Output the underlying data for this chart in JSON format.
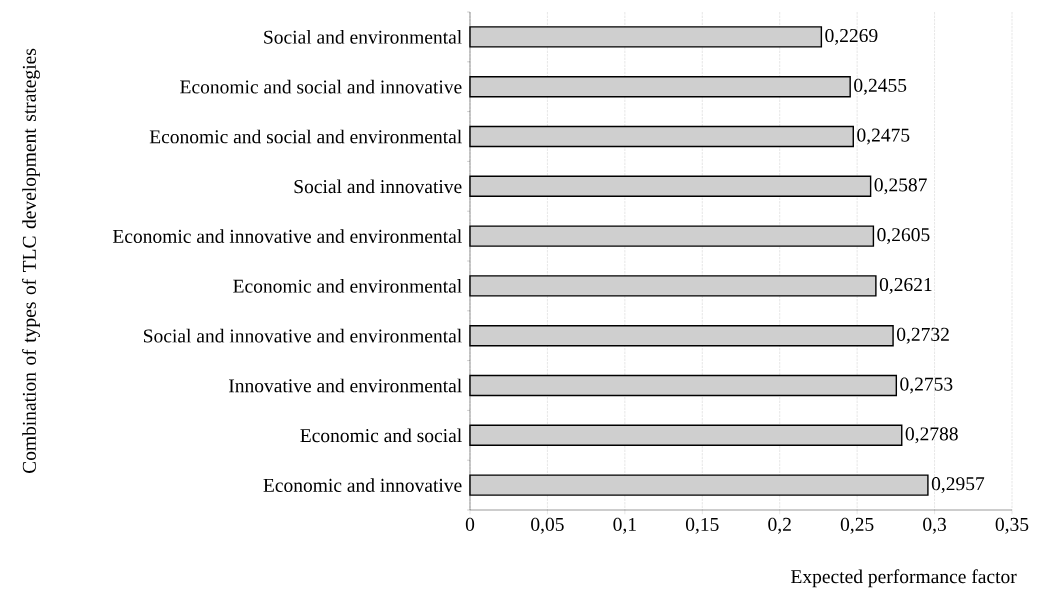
{
  "chart_data": {
    "type": "bar",
    "orientation": "horizontal",
    "xlabel": "Expected performance factor",
    "ylabel": "Combination of types of TLC development strategies",
    "categories": [
      "Social and environmental",
      "Economic and social and innovative",
      "Economic and social and environmental",
      "Social and innovative",
      "Economic and innovative and environmental",
      "Economic and environmental",
      "Social and innovative and environmental",
      "Innovative and environmental",
      "Economic and  social",
      "Economic and innovative"
    ],
    "values": [
      0.2269,
      0.2455,
      0.2475,
      0.2587,
      0.2605,
      0.2621,
      0.2732,
      0.2753,
      0.2788,
      0.2957
    ],
    "value_labels": [
      "0,2269",
      "0,2455",
      "0,2475",
      "0,2587",
      "0,2605",
      "0,2621",
      "0,2732",
      "0,2753",
      "0,2788",
      "0,2957"
    ],
    "color": "#cfcfcf",
    "xlim": [
      0,
      0.35
    ],
    "xticks": [
      0,
      {
        "value": 0.05,
        "label": "0,05"
      },
      {
        "value": 0.1,
        "label": "0,1"
      },
      {
        "value": 0.15,
        "label": "0,15"
      },
      {
        "value": 0.2,
        "label": "0,2"
      },
      {
        "value": 0.25,
        "label": "0,25"
      },
      {
        "value": 0.3,
        "label": "0,3"
      },
      {
        "value": 0.35,
        "label": "0,35"
      }
    ],
    "grid": "x"
  }
}
